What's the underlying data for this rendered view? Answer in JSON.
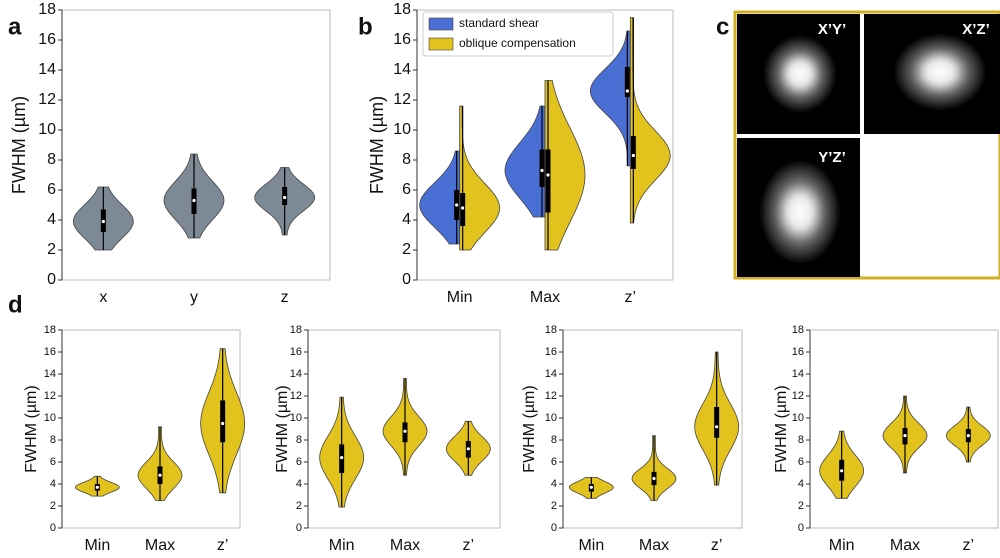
{
  "panel_labels": [
    "a",
    "b",
    "c",
    "d"
  ],
  "images": {
    "labels": [
      "X’Y’",
      "X’Z’",
      "Y’Z’"
    ]
  },
  "chart_data": [
    {
      "type": "violin",
      "ylabel": "FWHM (µm)",
      "categories": [
        "x",
        "y",
        "z"
      ],
      "ylim": [
        0,
        18
      ],
      "yticks": [
        0,
        2,
        4,
        6,
        8,
        10,
        12,
        14,
        16,
        18
      ],
      "series": [
        {
          "color": "#7d8a96",
          "values": [
            {
              "min": 2.0,
              "q1": 3.2,
              "median": 3.9,
              "q3": 4.7,
              "max": 6.2
            },
            {
              "min": 2.8,
              "q1": 4.4,
              "median": 5.3,
              "q3": 6.1,
              "max": 8.4
            },
            {
              "min": 3.0,
              "q1": 5.0,
              "median": 5.5,
              "q3": 6.2,
              "max": 7.5
            }
          ]
        }
      ]
    },
    {
      "type": "split-violin",
      "ylabel": "FWHM (µm)",
      "categories": [
        "Min",
        "Max",
        "z’"
      ],
      "ylim": [
        0,
        18
      ],
      "yticks": [
        0,
        2,
        4,
        6,
        8,
        10,
        12,
        14,
        16,
        18
      ],
      "legend": "upper left",
      "series": [
        {
          "name": "standard shear",
          "color": "#4a6fd4",
          "values": [
            {
              "min": 2.4,
              "q1": 4.0,
              "median": 5.0,
              "q3": 6.0,
              "max": 8.6
            },
            {
              "min": 4.2,
              "q1": 6.2,
              "median": 7.3,
              "q3": 8.7,
              "max": 11.6
            },
            {
              "min": 7.6,
              "q1": 12.2,
              "median": 12.6,
              "q3": 14.2,
              "max": 16.6
            }
          ]
        },
        {
          "name": "oblique compensation",
          "color": "#e2c21d",
          "values": [
            {
              "min": 2.0,
              "q1": 3.6,
              "median": 4.8,
              "q3": 5.8,
              "max": 11.6
            },
            {
              "min": 2.0,
              "q1": 4.5,
              "median": 7.0,
              "q3": 8.7,
              "max": 13.3
            },
            {
              "min": 3.8,
              "q1": 7.4,
              "median": 8.3,
              "q3": 9.6,
              "max": 17.5
            }
          ]
        }
      ]
    },
    {
      "type": "violin",
      "ylabel": "FWHM (µm)",
      "categories": [
        "Min",
        "Max",
        "z’"
      ],
      "ylim": [
        0,
        18
      ],
      "yticks": [
        0,
        2,
        4,
        6,
        8,
        10,
        12,
        14,
        16,
        18
      ],
      "series": [
        {
          "color": "#e2c21d",
          "values": [
            {
              "min": 2.9,
              "q1": 3.4,
              "median": 3.7,
              "q3": 4.0,
              "max": 4.7
            },
            {
              "min": 2.5,
              "q1": 4.0,
              "median": 4.8,
              "q3": 5.6,
              "max": 9.2
            },
            {
              "min": 3.2,
              "q1": 7.8,
              "median": 9.5,
              "q3": 11.6,
              "max": 16.3
            }
          ]
        }
      ]
    },
    {
      "type": "violin",
      "ylabel": "FWHM (µm)",
      "categories": [
        "Min",
        "Max",
        "z’"
      ],
      "ylim": [
        0,
        18
      ],
      "yticks": [
        0,
        2,
        4,
        6,
        8,
        10,
        12,
        14,
        16,
        18
      ],
      "series": [
        {
          "color": "#e2c21d",
          "values": [
            {
              "min": 1.9,
              "q1": 5.0,
              "median": 6.4,
              "q3": 7.6,
              "max": 11.9
            },
            {
              "min": 4.8,
              "q1": 7.8,
              "median": 8.8,
              "q3": 9.6,
              "max": 13.6
            },
            {
              "min": 4.8,
              "q1": 6.4,
              "median": 7.2,
              "q3": 7.9,
              "max": 9.7
            }
          ]
        }
      ]
    },
    {
      "type": "violin",
      "ylabel": "FWHM (µm)",
      "categories": [
        "Min",
        "Max",
        "z’"
      ],
      "ylim": [
        0,
        18
      ],
      "yticks": [
        0,
        2,
        4,
        6,
        8,
        10,
        12,
        14,
        16,
        18
      ],
      "series": [
        {
          "color": "#e2c21d",
          "values": [
            {
              "min": 2.7,
              "q1": 3.3,
              "median": 3.7,
              "q3": 4.0,
              "max": 4.6
            },
            {
              "min": 2.5,
              "q1": 3.9,
              "median": 4.5,
              "q3": 5.1,
              "max": 8.4
            },
            {
              "min": 3.9,
              "q1": 8.2,
              "median": 9.2,
              "q3": 11.0,
              "max": 16.0
            }
          ]
        }
      ]
    },
    {
      "type": "violin",
      "ylabel": "FWHM (µm)",
      "categories": [
        "Min",
        "Max",
        "z’"
      ],
      "ylim": [
        0,
        18
      ],
      "yticks": [
        0,
        2,
        4,
        6,
        8,
        10,
        12,
        14,
        16,
        18
      ],
      "series": [
        {
          "color": "#e2c21d",
          "values": [
            {
              "min": 2.7,
              "q1": 4.3,
              "median": 5.2,
              "q3": 6.2,
              "max": 8.8
            },
            {
              "min": 5.0,
              "q1": 7.6,
              "median": 8.4,
              "q3": 9.1,
              "max": 12.0
            },
            {
              "min": 6.0,
              "q1": 7.8,
              "median": 8.4,
              "q3": 9.0,
              "max": 11.0
            }
          ]
        }
      ]
    }
  ]
}
